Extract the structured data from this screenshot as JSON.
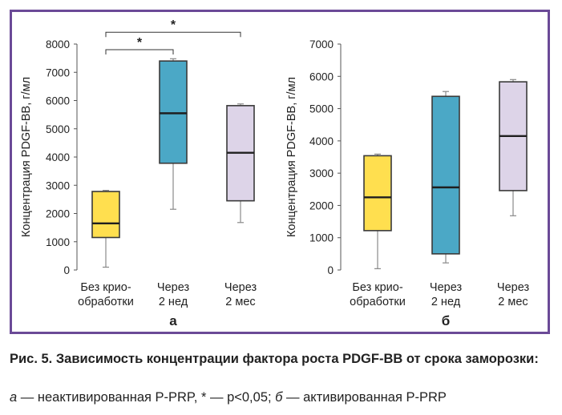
{
  "figure": {
    "caption_title": "Рис. 5. Зависимость концентрации фактора роста PDGF-BB от срока заморозки:",
    "caption_legend": {
      "a_letter": "а",
      "a_text": " — неактивированная P-PRP, * — p<0,05; ",
      "b_letter": "б",
      "b_text": " — активированная P-PRP"
    },
    "frame_color": "#6b4a97"
  },
  "chart_data": [
    {
      "type": "boxplot",
      "panel_label": "а",
      "ylabel": "Концентрация PDGF-BB, г/мл",
      "ylim": [
        0,
        8000
      ],
      "yticks": [
        "0",
        "1000",
        "2000",
        "3000",
        "4000",
        "5000",
        "6000",
        "7000",
        "8000"
      ],
      "grid": false,
      "categories": [
        [
          "Без крио-",
          "обработки"
        ],
        [
          "Через",
          "2 нед"
        ],
        [
          "Через",
          "2 мес"
        ]
      ],
      "boxes": [
        {
          "min": 100,
          "q1": 1150,
          "median": 1650,
          "q3": 2780,
          "max": 2820,
          "color": "#ffdf4f"
        },
        {
          "min": 2150,
          "q1": 3780,
          "median": 5550,
          "q3": 7400,
          "max": 7480,
          "color": "#4ba8c6"
        },
        {
          "min": 1680,
          "q1": 2450,
          "median": 4150,
          "q3": 5820,
          "max": 5880,
          "color": "#ddd4e8"
        }
      ],
      "significance": [
        {
          "from": 0,
          "to": 1,
          "label": "*",
          "level": 7800
        },
        {
          "from": 0,
          "to": 2,
          "label": "*",
          "level": 8420
        }
      ]
    },
    {
      "type": "boxplot",
      "panel_label": "б",
      "ylabel": "Концентрация PDGF-BB, г/мл",
      "ylim": [
        0,
        7000
      ],
      "yticks": [
        "0",
        "1000",
        "2000",
        "3000",
        "4000",
        "5000",
        "6000",
        "7000"
      ],
      "grid": false,
      "categories": [
        [
          "Без крио-",
          "обработки"
        ],
        [
          "Через",
          "2 нед"
        ],
        [
          "Через",
          "2 мес"
        ]
      ],
      "boxes": [
        {
          "min": 40,
          "q1": 1220,
          "median": 2250,
          "q3": 3540,
          "max": 3590,
          "color": "#ffdf4f"
        },
        {
          "min": 220,
          "q1": 500,
          "median": 2560,
          "q3": 5380,
          "max": 5530,
          "color": "#4ba8c6"
        },
        {
          "min": 1680,
          "q1": 2460,
          "median": 4150,
          "q3": 5830,
          "max": 5900,
          "color": "#ddd4e8"
        }
      ],
      "significance": []
    }
  ]
}
